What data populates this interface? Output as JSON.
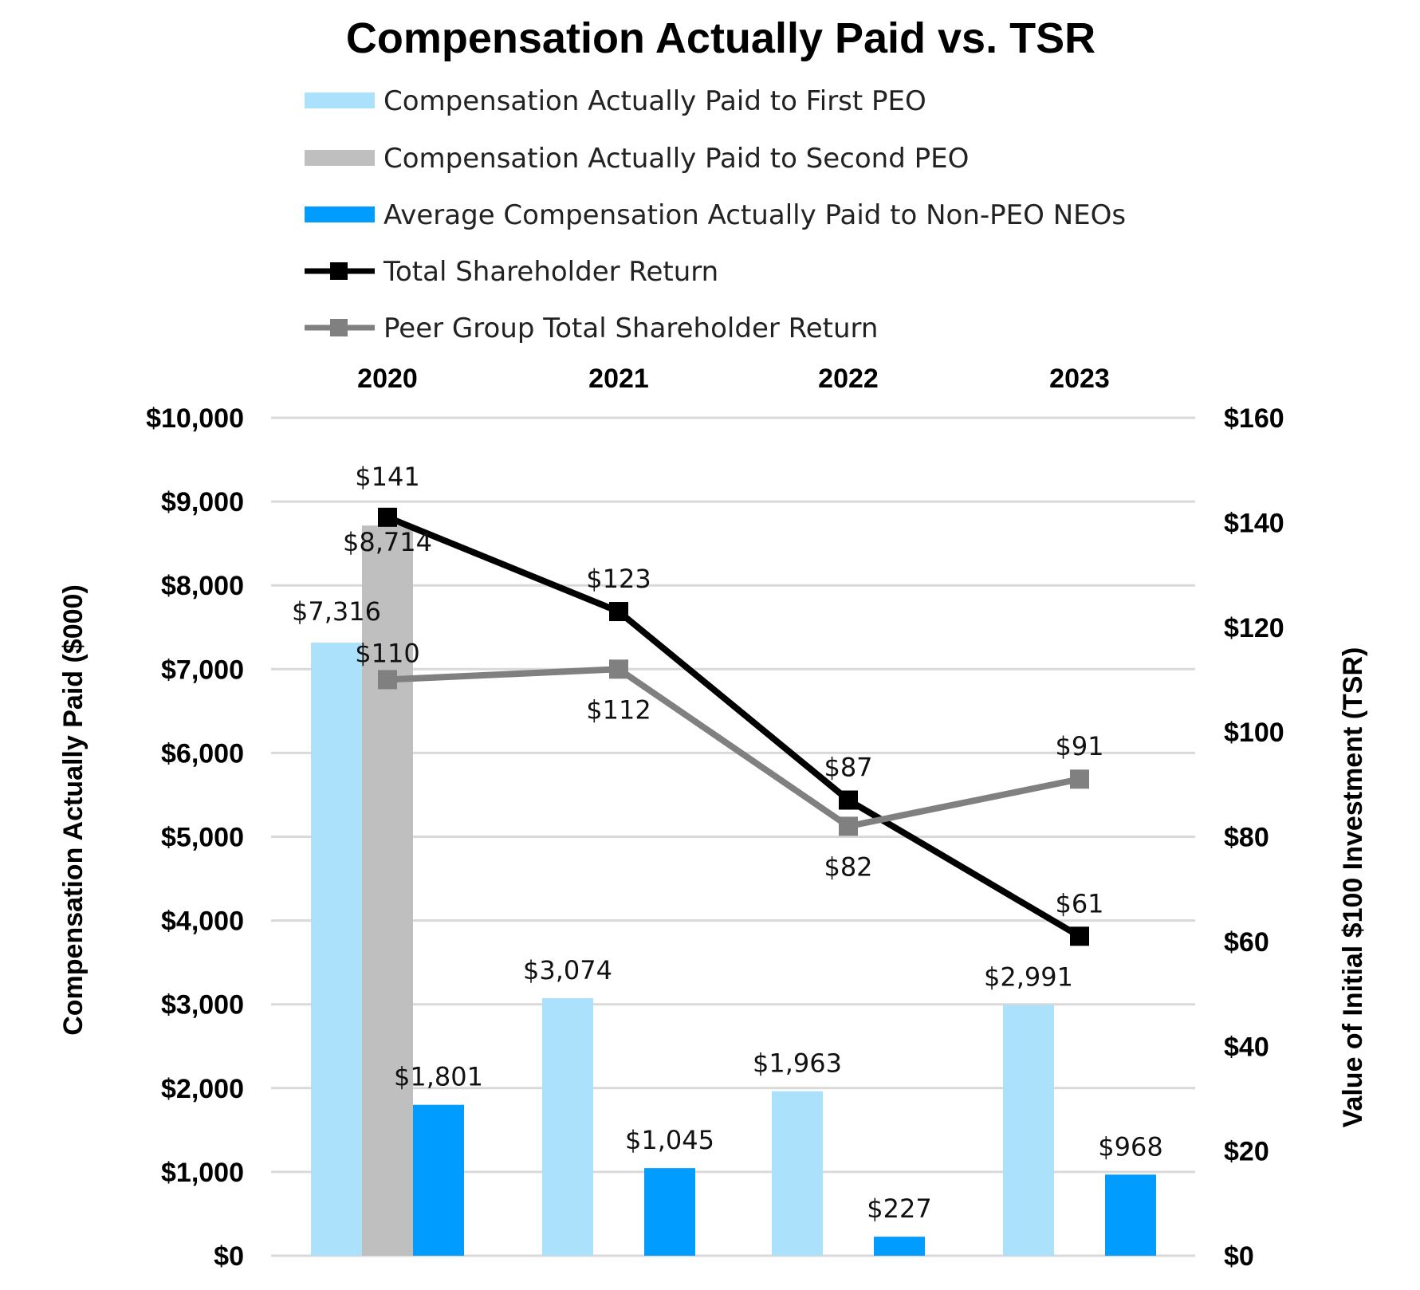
{
  "chart_data": {
    "type": "bar+line",
    "title": "Compensation Actually Paid vs. TSR",
    "categories": [
      "2020",
      "2021",
      "2022",
      "2023"
    ],
    "ylabel": "Compensation Actually Paid ($000)",
    "y2label": "Value of Initial $100 Investment (TSR)",
    "ylim": [
      0,
      10000
    ],
    "y2lim": [
      0,
      160
    ],
    "yticks": [
      "$0",
      "$1,000",
      "$2,000",
      "$3,000",
      "$4,000",
      "$5,000",
      "$6,000",
      "$7,000",
      "$8,000",
      "$9,000",
      "$10,000"
    ],
    "y2ticks": [
      "$0",
      "$20",
      "$40",
      "$60",
      "$80",
      "$100",
      "$120",
      "$140",
      "$160"
    ],
    "grid": true,
    "legend_position": "top",
    "bar_series": [
      {
        "name": "Compensation Actually Paid to First PEO",
        "color": "#ABE1FA",
        "values": [
          7316,
          3074,
          1963,
          2991
        ],
        "labels": [
          "$7,316",
          "$3,074",
          "$1,963",
          "$2,991"
        ]
      },
      {
        "name": "Compensation Actually Paid to Second PEO",
        "color": "#BFBFBF",
        "values": [
          8714,
          null,
          null,
          null
        ],
        "labels": [
          "$8,714",
          null,
          null,
          null
        ]
      },
      {
        "name": "Average Compensation Actually Paid to Non-PEO NEOs",
        "color": "#009CFF",
        "values": [
          1801,
          1045,
          227,
          968
        ],
        "labels": [
          "$1,801",
          "$1,045",
          "$227",
          "$968"
        ]
      }
    ],
    "line_series": [
      {
        "name": "Total Shareholder Return",
        "color": "#000000",
        "axis": "right",
        "values": [
          141,
          123,
          87,
          61
        ],
        "labels": [
          "$141",
          "$123",
          "$87",
          "$61"
        ]
      },
      {
        "name": "Peer Group Total Shareholder Return",
        "color": "#808080",
        "axis": "right",
        "values": [
          110,
          112,
          82,
          91
        ],
        "labels": [
          "$110",
          "$112",
          "$82",
          "$91"
        ]
      }
    ]
  }
}
